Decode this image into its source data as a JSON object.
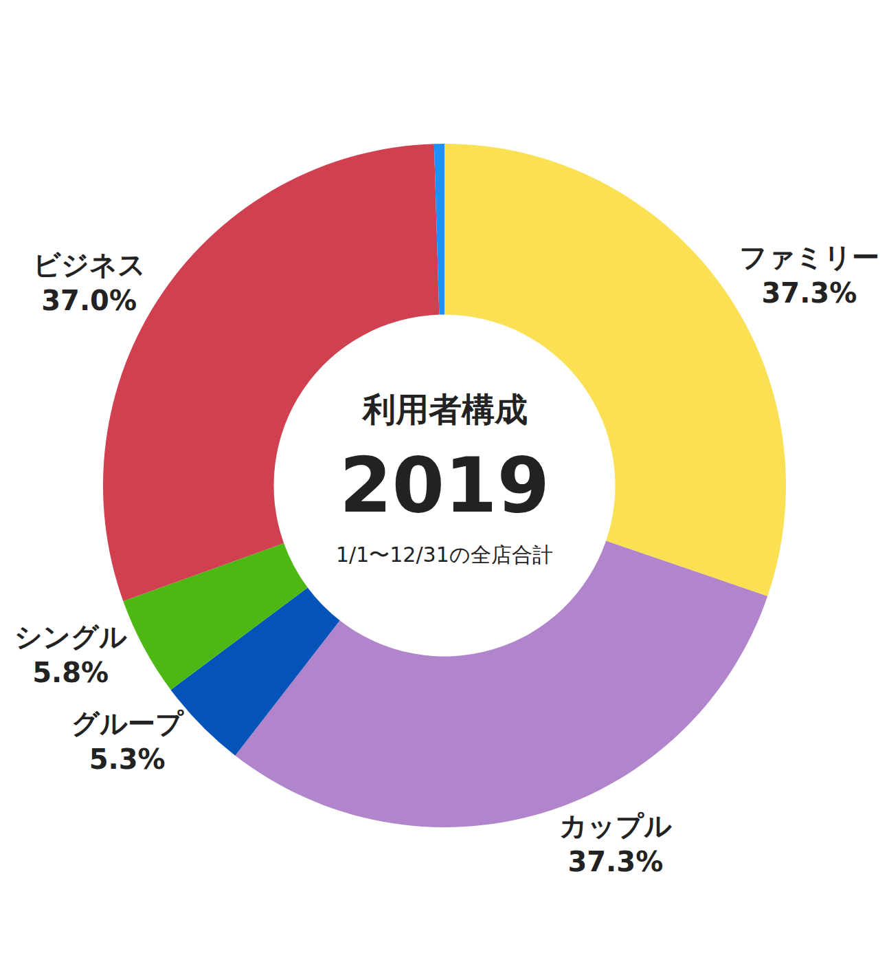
{
  "chart_data": {
    "type": "donut",
    "title": "利用者構成",
    "subtitle": "2019",
    "annotations": [
      "1/1〜12/31の全店合計"
    ],
    "categories": [
      "ファミリー",
      "カップル",
      "グループ",
      "シングル",
      "ビジネス",
      null
    ],
    "values": [
      37.3,
      37.3,
      5.3,
      5.8,
      37.0,
      0.6
    ],
    "value_labels": [
      "37.3%",
      "37.3%",
      "5.3%",
      "5.8%",
      "37.0%",
      null
    ],
    "colors": [
      "#fae052",
      "#b085cc",
      "#0353b8",
      "#4db814",
      "#d04050",
      "#1e90ff"
    ],
    "data_labels": true
  }
}
